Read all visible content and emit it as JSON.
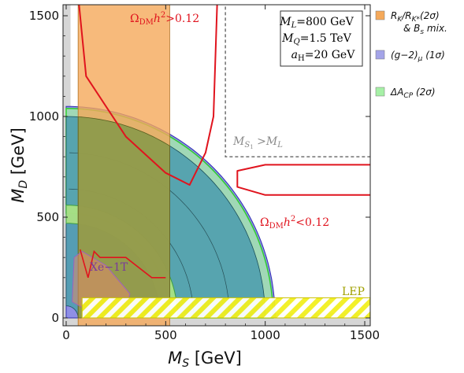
{
  "chart_data": {
    "type": "contour",
    "xlabel": "M_S [GeV]",
    "ylabel": "M_D [GeV]",
    "xlim": [
      0,
      1600
    ],
    "ylim": [
      0,
      1600
    ],
    "x_ticks": [
      "0",
      "500",
      "1000",
      "1500"
    ],
    "y_ticks": [
      "0",
      "500",
      "1000",
      "1500"
    ],
    "grid": false,
    "legend_position": "right",
    "parameters_box": [
      "M_L=800 GeV",
      "M_Q=1.5 TeV",
      "a_H=20 GeV"
    ],
    "legend": [
      {
        "label": "R_K/R_K*(2σ) & B_s mix.",
        "color": "#f5a95a"
      },
      {
        "label": "(g−2)_μ (1σ)",
        "color": "#a4a4e8"
      },
      {
        "label": "ΔA_CP (2σ)",
        "color": "#a6f0a6"
      }
    ],
    "annotations": [
      {
        "text": "Ω_DM h² > 0.12",
        "color": "#e0141e",
        "x": 640,
        "y": 1500
      },
      {
        "text": "Ω_DM h² < 0.12",
        "color": "#e0141e",
        "x": 1080,
        "y": 480
      },
      {
        "text": "M_S1 > M_L",
        "color": "#8a8a8a",
        "x": 820,
        "y": 860
      },
      {
        "text": "Xe−1T",
        "color": "#7a3a9a",
        "x": 200,
        "y": 260
      },
      {
        "text": "LEP",
        "color": "#a0a000",
        "x": 1500,
        "y": 105
      }
    ],
    "regions": {
      "rk_band": {
        "x_range": [
          60,
          520
        ],
        "y_range": [
          0,
          1600
        ]
      },
      "gm2_outer_radius": 1050,
      "dacp_outer_radius": 1040,
      "dacp_inner_radius": 520,
      "lep_band": {
        "y_range": [
          0,
          100
        ],
        "x_range": [
          80,
          1600
        ]
      },
      "kinematic_boundary": {
        "line": "M_S1 = M_L",
        "x_start": 800,
        "y_start": 800
      }
    },
    "relic_curve_upper": [
      [
        60,
        1600
      ],
      [
        100,
        1200
      ],
      [
        300,
        900
      ],
      [
        500,
        720
      ],
      [
        620,
        660
      ],
      [
        700,
        820
      ],
      [
        740,
        1000
      ],
      [
        760,
        1600
      ]
    ],
    "relic_curve_lower": [
      [
        1600,
        760
      ],
      [
        1000,
        760
      ],
      [
        860,
        730
      ],
      [
        860,
        650
      ],
      [
        1000,
        610
      ],
      [
        1600,
        610
      ]
    ]
  }
}
